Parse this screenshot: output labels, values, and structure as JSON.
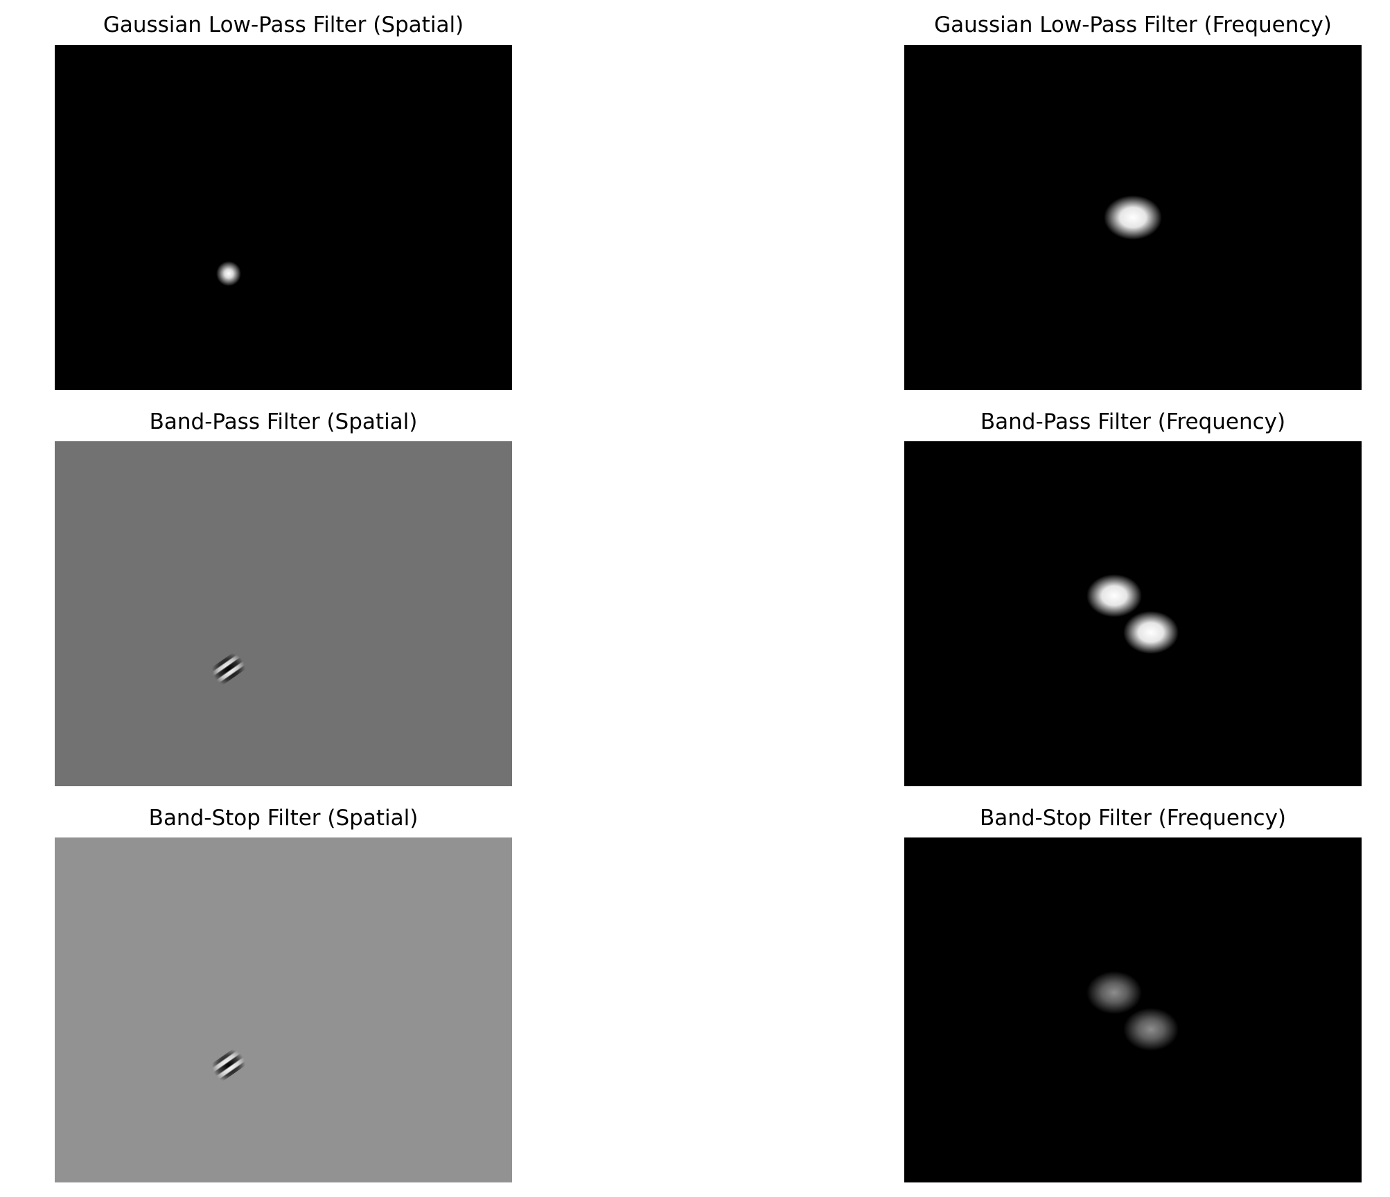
{
  "panels": [
    {
      "id": "lowpass-spatial",
      "title": "Gaussian Low-Pass Filter (Spatial)",
      "background": "#000000"
    },
    {
      "id": "lowpass-frequency",
      "title": "Gaussian Low-Pass Filter (Frequency)",
      "background": "#000000"
    },
    {
      "id": "bandpass-spatial",
      "title": "Band-Pass Filter (Spatial)",
      "background": "#727272"
    },
    {
      "id": "bandpass-frequency",
      "title": "Band-Pass Filter (Frequency)",
      "background": "#000000"
    },
    {
      "id": "bandstop-spatial",
      "title": "Band-Stop Filter (Spatial)",
      "background": "#929292"
    },
    {
      "id": "bandstop-frequency",
      "title": "Band-Stop Filter (Frequency)",
      "background": "#000000"
    }
  ]
}
